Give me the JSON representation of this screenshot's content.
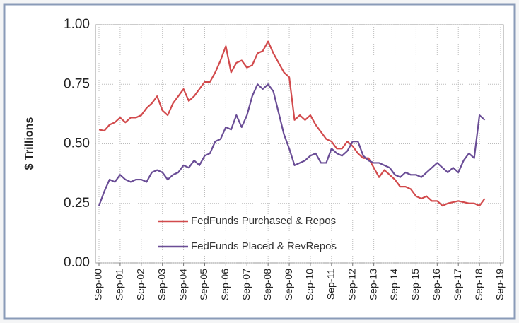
{
  "chart_data": {
    "type": "line",
    "y_label": "$ Trillions",
    "categories": [
      "Sep-00",
      null,
      null,
      null,
      "Sep-01",
      null,
      null,
      null,
      "Sep-02",
      null,
      null,
      null,
      "Sep-03",
      null,
      null,
      null,
      "Sep-04",
      null,
      null,
      null,
      "Sep-05",
      null,
      null,
      null,
      "Sep-06",
      null,
      null,
      null,
      "Sep-07",
      null,
      null,
      null,
      "Sep-08",
      null,
      null,
      null,
      "Sep-09",
      null,
      null,
      null,
      "Sep-10",
      null,
      null,
      null,
      "Sep-11",
      null,
      null,
      null,
      "Sep-12",
      null,
      null,
      null,
      "Sep-13",
      null,
      null,
      null,
      "Sep-14",
      null,
      null,
      null,
      "Sep-15",
      null,
      null,
      null,
      "Sep-16",
      null,
      null,
      null,
      "Sep-17",
      null,
      null,
      null,
      "Sep-18",
      null,
      null,
      null,
      "Sep-19"
    ],
    "series": [
      {
        "name": "FedFunds Purchased & Repos",
        "color": "#d24a4c",
        "values": [
          0.56,
          0.555,
          0.58,
          0.59,
          0.61,
          0.59,
          0.61,
          0.61,
          0.62,
          0.65,
          0.67,
          0.7,
          0.64,
          0.62,
          0.67,
          0.7,
          0.73,
          0.68,
          0.7,
          0.73,
          0.76,
          0.76,
          0.8,
          0.85,
          0.91,
          0.8,
          0.84,
          0.85,
          0.82,
          0.83,
          0.88,
          0.89,
          0.93,
          0.88,
          0.84,
          0.8,
          0.78,
          0.6,
          0.62,
          0.6,
          0.62,
          0.58,
          0.55,
          0.52,
          0.51,
          0.48,
          0.48,
          0.51,
          0.49,
          0.46,
          0.44,
          0.44,
          0.4,
          0.36,
          0.39,
          0.37,
          0.35,
          0.32,
          0.32,
          0.31,
          0.28,
          0.27,
          0.28,
          0.26,
          0.26,
          0.24,
          0.25,
          0.255,
          0.26,
          0.255,
          0.25,
          0.25,
          0.24,
          0.27,
          null,
          null,
          null
        ]
      },
      {
        "name": "FedFunds Placed & RevRepos",
        "color": "#6a4d96",
        "values": [
          0.24,
          0.3,
          0.35,
          0.34,
          0.37,
          0.35,
          0.34,
          0.35,
          0.35,
          0.34,
          0.38,
          0.39,
          0.38,
          0.35,
          0.37,
          0.38,
          0.41,
          0.4,
          0.43,
          0.41,
          0.45,
          0.46,
          0.51,
          0.52,
          0.57,
          0.56,
          0.62,
          0.57,
          0.62,
          0.7,
          0.75,
          0.73,
          0.75,
          0.72,
          0.63,
          0.54,
          0.48,
          0.41,
          0.42,
          0.43,
          0.45,
          0.46,
          0.42,
          0.42,
          0.48,
          0.46,
          0.45,
          0.47,
          0.51,
          0.51,
          0.45,
          0.43,
          0.42,
          0.42,
          0.41,
          0.4,
          0.37,
          0.36,
          0.38,
          0.37,
          0.37,
          0.36,
          0.38,
          0.4,
          0.42,
          0.4,
          0.38,
          0.4,
          0.38,
          0.43,
          0.46,
          0.44,
          0.62,
          0.6,
          null,
          null,
          null
        ]
      }
    ],
    "ylim": [
      0,
      1
    ],
    "yticks": [
      {
        "value": 0,
        "label": "0.00"
      },
      {
        "value": 0.25,
        "label": "0.25"
      },
      {
        "value": 0.5,
        "label": "0.50"
      },
      {
        "value": 0.75,
        "label": "0.75"
      },
      {
        "value": 1,
        "label": "1.00"
      }
    ],
    "grid": true
  }
}
